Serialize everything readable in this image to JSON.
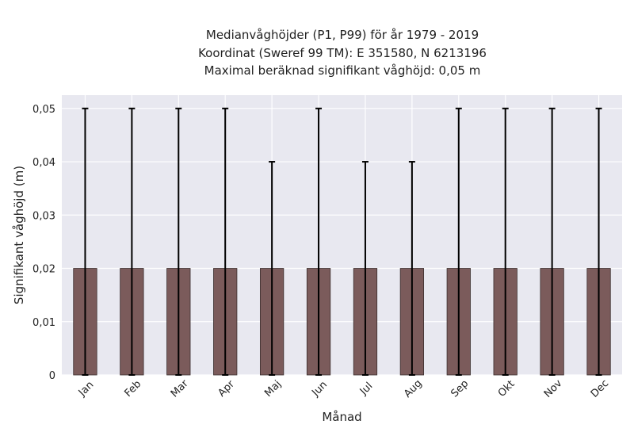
{
  "chart_data": {
    "type": "bar",
    "title": [
      "Medianvåghöjder (P1, P99) för år 1979 - 2019",
      "Koordinat (Sweref 99 TM): E 351580, N 6213196",
      "Maximal beräknad signifikant våghöjd: 0,05 m"
    ],
    "xlabel": "Månad",
    "ylabel": "Signifikant våghöjd (m)",
    "categories": [
      "Jan",
      "Feb",
      "Mar",
      "Apr",
      "Maj",
      "Jun",
      "Jul",
      "Aug",
      "Sep",
      "Okt",
      "Nov",
      "Dec"
    ],
    "values": [
      0.02,
      0.02,
      0.02,
      0.02,
      0.02,
      0.02,
      0.02,
      0.02,
      0.02,
      0.02,
      0.02,
      0.02
    ],
    "error_low": [
      0,
      0,
      0,
      0,
      0,
      0,
      0,
      0,
      0,
      0,
      0,
      0
    ],
    "error_high": [
      0.05,
      0.05,
      0.05,
      0.05,
      0.04,
      0.05,
      0.04,
      0.04,
      0.05,
      0.05,
      0.05,
      0.05
    ],
    "ylim": [
      0,
      0.0525
    ],
    "yticks": [
      0,
      0.01,
      0.02,
      0.03,
      0.04,
      0.05
    ],
    "ytick_labels": [
      "0",
      "0,01",
      "0,02",
      "0,03",
      "0,04",
      "0,05"
    ],
    "grid": true,
    "colors": {
      "bar": "#7b5b5b",
      "bar_edge": "#3a2e2e",
      "errorbar": "#000000",
      "plot_bg": "#e8e8f0",
      "grid": "#ffffff"
    }
  }
}
